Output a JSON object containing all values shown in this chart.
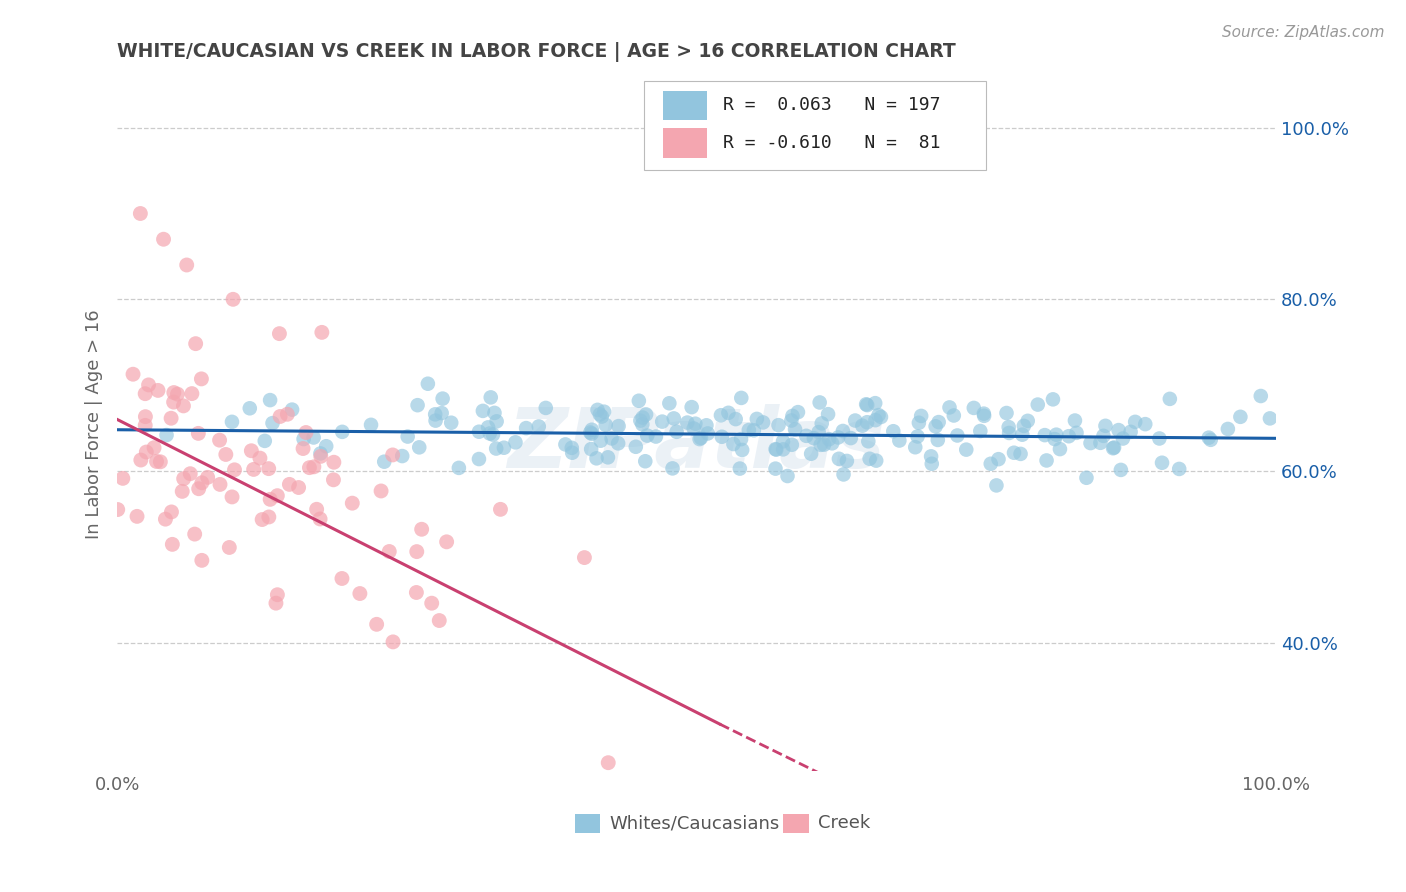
{
  "title": "WHITE/CAUCASIAN VS CREEK IN LABOR FORCE | AGE > 16 CORRELATION CHART",
  "source_text": "Source: ZipAtlas.com",
  "ylabel": "In Labor Force | Age > 16",
  "xlim": [
    0,
    1
  ],
  "ylim": [
    0.25,
    1.06
  ],
  "yticks": [
    0.4,
    0.6,
    0.8,
    1.0
  ],
  "ytick_labels": [
    "40.0%",
    "60.0%",
    "80.0%",
    "100.0%"
  ],
  "xticks": [
    0.0,
    1.0
  ],
  "xtick_labels": [
    "0.0%",
    "100.0%"
  ],
  "blue_R": 0.063,
  "blue_N": 197,
  "pink_R": -0.61,
  "pink_N": 81,
  "blue_color": "#92c5de",
  "pink_color": "#f4a6b0",
  "blue_line_color": "#1a5fa8",
  "pink_line_color": "#c94070",
  "watermark": "ZIPatlas",
  "background_color": "#ffffff",
  "grid_color": "#cccccc",
  "title_color": "#444444",
  "blue_trend_start_x": 0.0,
  "blue_trend_start_y": 0.648,
  "blue_trend_end_x": 1.0,
  "blue_trend_end_y": 0.638,
  "pink_trend_start_x": 0.0,
  "pink_trend_start_y": 0.66,
  "pink_trend_solid_end_x": 0.52,
  "pink_trend_solid_end_y": 0.305,
  "pink_trend_dash_end_x": 0.72,
  "pink_trend_dash_end_y": 0.172
}
